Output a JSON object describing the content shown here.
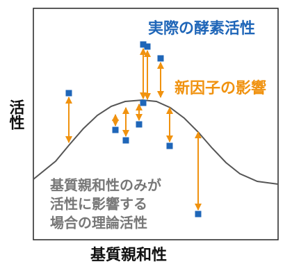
{
  "chart_data": {
    "type": "scatter",
    "xlabel": "基質親和性",
    "ylabel": "活性",
    "xlim": [
      0,
      352
    ],
    "ylim": [
      0,
      333
    ],
    "annotation": [
      "基質親和性のみが",
      "活性に影響する",
      "場合の理論活性"
    ],
    "series": [
      {
        "kind": "line",
        "color": "#555555",
        "x": [
          0,
          32,
          52,
          72,
          92,
          112,
          132,
          157,
          177,
          197,
          217,
          237,
          257,
          277,
          297,
          322,
          352
        ],
        "values": [
          87,
          113,
          137,
          160,
          179,
          192,
          199,
          201,
          199,
          190,
          175,
          155,
          132,
          111,
          95,
          84,
          80
        ]
      },
      {
        "kind": "points",
        "name": "実際の酵素活性",
        "color": "#1f66b8",
        "x": [
          51,
          118,
          133,
          152,
          158,
          158,
          164,
          183,
          196,
          237
        ],
        "values": [
          211,
          158,
          143,
          166,
          197,
          281,
          278,
          261,
          135,
          37
        ]
      },
      {
        "kind": "arrows",
        "name": "新因子の影響",
        "color": "#f0920f",
        "values": [
          140,
          180,
          190,
          195,
          null,
          203,
          202,
          205,
          190,
          155
        ]
      }
    ]
  }
}
